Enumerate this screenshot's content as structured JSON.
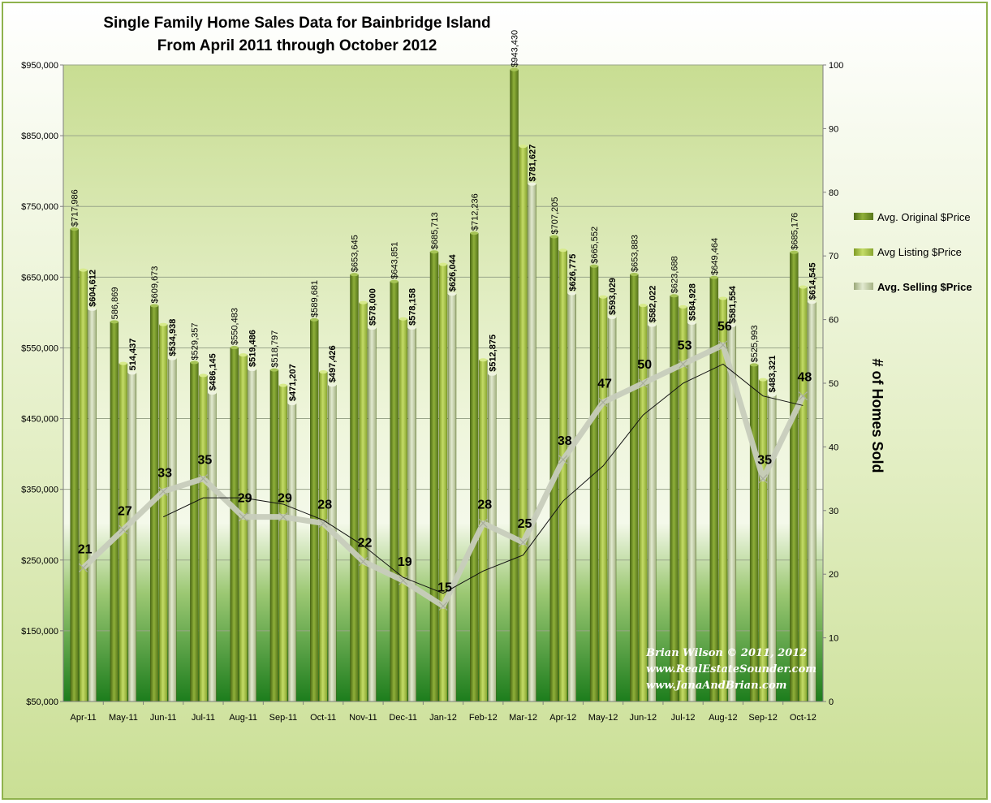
{
  "chart_data": {
    "type": "bar",
    "title": [
      "Single Family Home Sales Data for Bainbridge Island",
      "From April 2011 through October 2012"
    ],
    "categories": [
      "Apr-11",
      "May-11",
      "Jun-11",
      "Jul-11",
      "Aug-11",
      "Sep-11",
      "Oct-11",
      "Nov-11",
      "Dec-11",
      "Jan-12",
      "Feb-12",
      "Mar-12",
      "Apr-12",
      "May-12",
      "Jun-12",
      "Jul-12",
      "Aug-12",
      "Sep-12",
      "Oct-12"
    ],
    "series": [
      {
        "name": "Avg. Original $Price",
        "color": "#7a9a2b",
        "values": [
          717986,
          586869,
          609673,
          529357,
          550483,
          518797,
          589681,
          653645,
          643851,
          685713,
          712236,
          943430,
          707205,
          665552,
          653883,
          623688,
          649464,
          525993,
          685176
        ],
        "labels": [
          "$717,986",
          "586,869",
          "$609,673",
          "$529,357",
          "$550,483",
          "$518,797",
          "$589,681",
          "$653,645",
          "$643,851",
          "$685,713",
          "$712,236",
          "$943,430",
          "$707,205",
          "$665,552",
          "$653,883",
          "$623,688",
          "$649,464",
          "$525,993",
          "$685,176"
        ]
      },
      {
        "name": "Avg Listing $Price",
        "color": "#a8c545",
        "values": [
          660000,
          528000,
          583000,
          511000,
          540000,
          497000,
          516000,
          614000,
          591000,
          668000,
          533000,
          835000,
          688000,
          622000,
          610000,
          608000,
          620000,
          505000,
          636000
        ],
        "labels": []
      },
      {
        "name": "Avg. Selling $Price",
        "color": "#c9d6a4",
        "values": [
          604612,
          514437,
          534938,
          486145,
          519486,
          471207,
          497426,
          578000,
          578158,
          626044,
          512875,
          781627,
          626775,
          593029,
          582022,
          584928,
          581554,
          483321,
          614545
        ],
        "labels": [
          "$604,612",
          "514,437",
          "$534,938",
          "$486,145",
          "$519,486",
          "$471,207",
          "$497,426",
          "$578,000",
          "$578,158",
          "$626,044",
          "$512,875",
          "$781,627",
          "$626,775",
          "$593,029",
          "$582,022",
          "$584,928",
          "$581,554",
          "$483,321",
          "$614,545"
        ]
      }
    ],
    "homes_sold": [
      21,
      27,
      33,
      35,
      29,
      29,
      28,
      22,
      19,
      15,
      28,
      25,
      38,
      47,
      50,
      53,
      56,
      35,
      48
    ],
    "trend": [
      null,
      null,
      29,
      32,
      32,
      31,
      28.5,
      24.5,
      19.5,
      17,
      20.5,
      23,
      31.5,
      37,
      45,
      50,
      53,
      48,
      46.5
    ],
    "y_left": {
      "min": 50000,
      "max": 950000,
      "ticks": [
        "$50,000",
        "$150,000",
        "$250,000",
        "$350,000",
        "$450,000",
        "$550,000",
        "$650,000",
        "$750,000",
        "$850,000",
        "$950,000"
      ]
    },
    "y_right": {
      "min": 0,
      "max": 100,
      "ticks": [
        "0",
        "10",
        "20",
        "30",
        "40",
        "50",
        "60",
        "70",
        "80",
        "90",
        "100"
      ],
      "label": "# of Homes Sold"
    },
    "grid": true,
    "legend_position": "right"
  },
  "credits": [
    "Brian Wilson © 2011, 2012",
    "www.RealEstateSounder.com",
    "www.JanaAndBrian.com"
  ]
}
